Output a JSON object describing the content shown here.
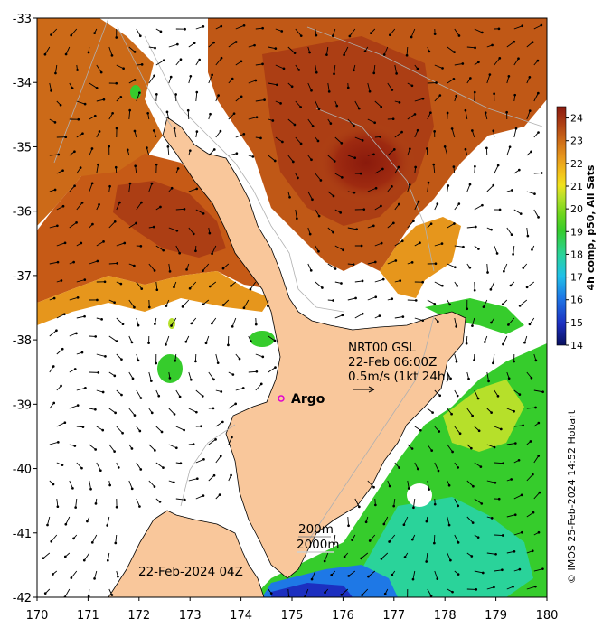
{
  "map": {
    "x_ticks": [
      "170",
      "171",
      "172",
      "173",
      "174",
      "175",
      "176",
      "177",
      "178",
      "179",
      "180"
    ],
    "y_ticks": [
      "-33",
      "-34",
      "-35",
      "-36",
      "-37",
      "-38",
      "-39",
      "-40",
      "-41",
      "-42"
    ],
    "lon_range": [
      170,
      180
    ],
    "lat_range": [
      -42,
      -33
    ]
  },
  "colorbar": {
    "label": "4h comp, p50, All Sats",
    "ticks": [
      "24",
      "23",
      "22",
      "21",
      "20",
      "19",
      "18",
      "17",
      "16",
      "15",
      "14"
    ],
    "range": [
      14,
      24.5
    ],
    "colors": [
      "#08105e",
      "#1c2fc0",
      "#1e78e6",
      "#20c0e8",
      "#2ad39a",
      "#36cc2c",
      "#6fd61c",
      "#b6e02a",
      "#f0e21e",
      "#f3c21a",
      "#e6961c",
      "#cc6a18",
      "#ac3e14",
      "#8a1a10"
    ]
  },
  "annotations": {
    "current_line1": "NRT00 GSL",
    "current_line2": "22-Feb 06:00Z",
    "current_line3": "0.5m/s (1kt 24h)",
    "argo": "Argo",
    "contour_200": "200m",
    "contour_2000": "2000m",
    "date": "22-Feb-2024 04Z",
    "credit": "© IMOS 25-Feb-2024 14:52 Hobart"
  }
}
